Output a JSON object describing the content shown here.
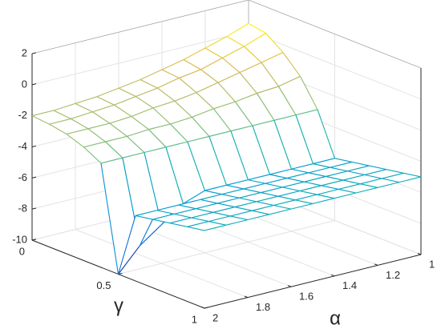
{
  "chart_data": {
    "type": "mesh",
    "xlabel": "α",
    "ylabel": "γ",
    "x": [
      1,
      1.1,
      1.2,
      1.3,
      1.4,
      1.5,
      1.6,
      1.7,
      1.8,
      1.9,
      2
    ],
    "y": [
      0,
      0.1,
      0.2,
      0.3,
      0.4,
      0.5,
      0.6,
      0.7,
      0.8,
      0.9,
      1
    ],
    "z": [
      [
        0.5,
        0.0,
        -0.4,
        -0.8,
        -1.1,
        -1.4,
        -1.6,
        -1.8,
        -1.9,
        -2.0,
        -2.0
      ],
      [
        0.3,
        -0.2,
        -0.6,
        -1.0,
        -1.2,
        -1.5,
        -1.7,
        -1.9,
        -2.0,
        -2.1,
        -2.1
      ],
      [
        -0.5,
        -0.8,
        -1.1,
        -1.4,
        -1.7,
        -1.9,
        -2.0,
        -2.2,
        -2.3,
        -2.3,
        -2.3
      ],
      [
        -1.6,
        -1.9,
        -2.0,
        -2.2,
        -2.3,
        -2.5,
        -2.6,
        -2.6,
        -2.7,
        -2.7,
        -2.7
      ],
      [
        -3.3,
        -3.3,
        -3.3,
        -3.3,
        -3.3,
        -3.3,
        -3.3,
        -3.3,
        -3.3,
        -3.3,
        -3.3
      ],
      [
        -6.0,
        -6.0,
        -6.0,
        -6.0,
        -6.0,
        -6.0,
        -6.0,
        -6.5,
        -7.5,
        -8.5,
        -10.0
      ],
      [
        -5.8,
        -5.8,
        -5.8,
        -5.8,
        -5.8,
        -5.8,
        -5.8,
        -5.8,
        -5.8,
        -5.8,
        -5.8
      ],
      [
        -5.6,
        -5.6,
        -5.6,
        -5.6,
        -5.6,
        -5.6,
        -5.6,
        -5.6,
        -5.6,
        -5.6,
        -5.6
      ],
      [
        -5.4,
        -5.4,
        -5.4,
        -5.4,
        -5.4,
        -5.4,
        -5.4,
        -5.4,
        -5.4,
        -5.4,
        -5.4
      ],
      [
        -5.2,
        -5.2,
        -5.2,
        -5.2,
        -5.2,
        -5.2,
        -5.2,
        -5.2,
        -5.2,
        -5.2,
        -5.2
      ],
      [
        -5.0,
        -5.0,
        -5.0,
        -5.0,
        -5.0,
        -5.0,
        -5.0,
        -5.0,
        -5.0,
        -5.0,
        -5.0
      ]
    ],
    "xlim": [
      1,
      2
    ],
    "xticks": [
      1,
      1.2,
      1.4,
      1.6,
      1.8,
      2
    ],
    "ylim": [
      0,
      1
    ],
    "yticks": [
      0,
      0.5,
      1
    ],
    "zlim": [
      -10,
      2
    ],
    "zticks": [
      -10,
      -8,
      -6,
      -4,
      -2,
      0,
      2
    ],
    "grid": true,
    "colormap": "parula"
  }
}
